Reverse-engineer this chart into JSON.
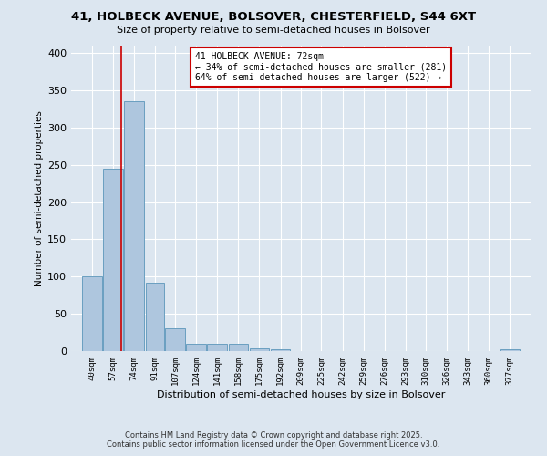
{
  "title_line1": "41, HOLBECK AVENUE, BOLSOVER, CHESTERFIELD, S44 6XT",
  "title_line2": "Size of property relative to semi-detached houses in Bolsover",
  "xlabel": "Distribution of semi-detached houses by size in Bolsover",
  "ylabel": "Number of semi-detached properties",
  "bins": [
    40,
    57,
    74,
    91,
    107,
    124,
    141,
    158,
    175,
    192,
    209,
    225,
    242,
    259,
    276,
    293,
    310,
    326,
    343,
    360,
    377
  ],
  "bar_heights": [
    100,
    245,
    335,
    92,
    30,
    10,
    10,
    10,
    4,
    2,
    0,
    0,
    0,
    0,
    0,
    0,
    0,
    0,
    0,
    0,
    2
  ],
  "bar_color": "#aec6de",
  "bar_edge_color": "#6a9fc0",
  "property_line_x": 72,
  "property_line_color": "#cc0000",
  "annotation_text": "41 HOLBECK AVENUE: 72sqm\n← 34% of semi-detached houses are smaller (281)\n64% of semi-detached houses are larger (522) →",
  "annotation_box_color": "#ffffff",
  "annotation_box_edge_color": "#cc0000",
  "ylim": [
    0,
    410
  ],
  "background_color": "#dce6f0",
  "grid_color": "#ffffff",
  "footer_line1": "Contains HM Land Registry data © Crown copyright and database right 2025.",
  "footer_line2": "Contains public sector information licensed under the Open Government Licence v3.0."
}
